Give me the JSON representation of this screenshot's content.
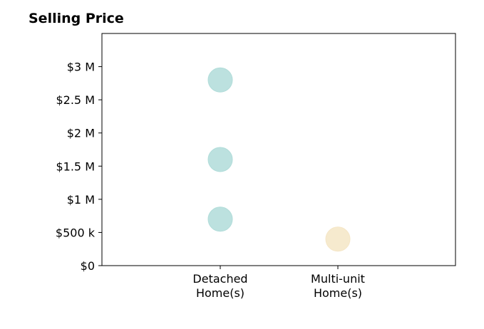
{
  "chart_data": {
    "type": "scatter",
    "title": "Selling Price",
    "categories": [
      "Detached\nHome(s)",
      "Multi-unit\nHome(s)"
    ],
    "y_ticks": [
      {
        "value": 0,
        "label": "$0"
      },
      {
        "value": 500000,
        "label": "$500 k"
      },
      {
        "value": 1000000,
        "label": "$1 M"
      },
      {
        "value": 1500000,
        "label": "$1.5 M"
      },
      {
        "value": 2000000,
        "label": "$2 M"
      },
      {
        "value": 2500000,
        "label": "$2.5 M"
      },
      {
        "value": 3000000,
        "label": "$3 M"
      }
    ],
    "ylim": [
      0,
      3500000
    ],
    "grid": false,
    "points": [
      {
        "category": 0,
        "value": 2800000,
        "color": "#b0dcd9"
      },
      {
        "category": 0,
        "value": 1600000,
        "color": "#b0dcd9"
      },
      {
        "category": 0,
        "value": 700000,
        "color": "#b0dcd9"
      },
      {
        "category": 1,
        "value": 400000,
        "color": "#f5e6c6"
      }
    ],
    "colors": {
      "detached": "#b0dcd9",
      "multi_unit": "#f5e6c6"
    }
  }
}
